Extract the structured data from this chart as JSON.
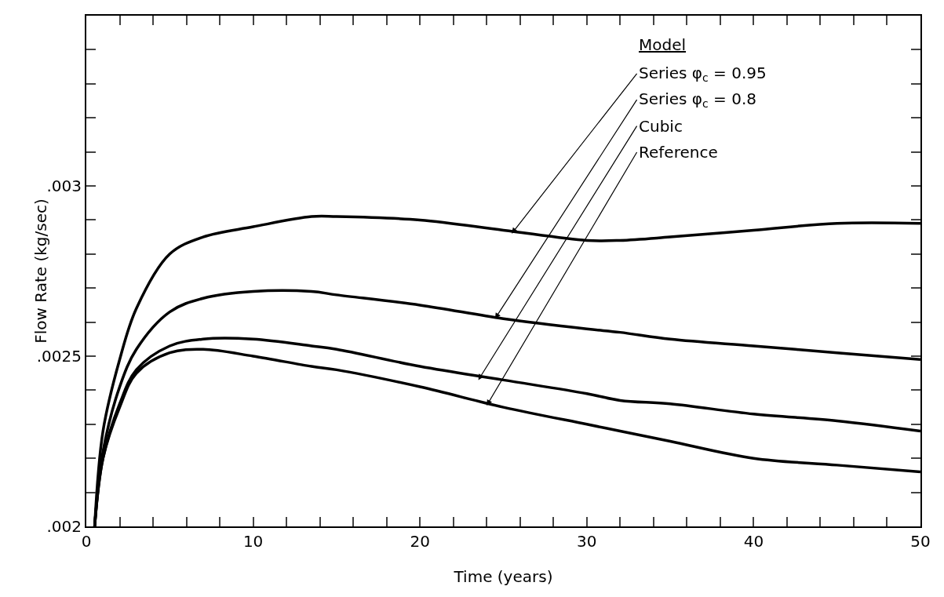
{
  "chart_data": {
    "type": "line",
    "xlabel": "Time (years)",
    "ylabel": "Flow Rate (kg/sec)",
    "legend_title": "Model",
    "xlim": [
      0,
      50
    ],
    "ylim": [
      0.002,
      0.0035
    ],
    "xticks": [
      0,
      {
        "value": 2,
        "label": null
      },
      {
        "value": 4,
        "label": null
      },
      {
        "value": 6,
        "label": null
      },
      {
        "value": 8,
        "label": null
      },
      10,
      {
        "value": 12,
        "label": null
      },
      {
        "value": 14,
        "label": null
      },
      {
        "value": 16,
        "label": null
      },
      {
        "value": 18,
        "label": null
      },
      20,
      {
        "value": 22,
        "label": null
      },
      {
        "value": 24,
        "label": null
      },
      {
        "value": 26,
        "label": null
      },
      {
        "value": 28,
        "label": null
      },
      30,
      {
        "value": 32,
        "label": null
      },
      {
        "value": 34,
        "label": null
      },
      {
        "value": 36,
        "label": null
      },
      {
        "value": 38,
        "label": null
      },
      40,
      {
        "value": 42,
        "label": null
      },
      {
        "value": 44,
        "label": null
      },
      {
        "value": 46,
        "label": null
      },
      {
        "value": 48,
        "label": null
      },
      50
    ],
    "yticks": [
      {
        "value": 0.002,
        "label": ".002"
      },
      {
        "value": 0.0021,
        "label": null
      },
      {
        "value": 0.0022,
        "label": null
      },
      {
        "value": 0.0023,
        "label": null
      },
      {
        "value": 0.0024,
        "label": null
      },
      {
        "value": 0.0025,
        "label": ".0025"
      },
      {
        "value": 0.0026,
        "label": null
      },
      {
        "value": 0.0027,
        "label": null
      },
      {
        "value": 0.0028,
        "label": null
      },
      {
        "value": 0.0029,
        "label": null
      },
      {
        "value": 0.003,
        "label": ".003"
      },
      {
        "value": 0.0031,
        "label": null
      },
      {
        "value": 0.0032,
        "label": null
      },
      {
        "value": 0.0033,
        "label": null
      },
      {
        "value": 0.0034,
        "label": null
      },
      {
        "value": 0.0035,
        "label": null
      }
    ],
    "grid": false,
    "marker": "none",
    "line_style": "solid",
    "x": [
      0.5,
      1,
      2,
      3,
      5,
      7,
      10,
      13.5,
      15,
      20,
      25,
      30,
      32,
      35,
      40,
      45,
      50
    ],
    "series": [
      {
        "color": "#000000",
        "values": [
          0.002,
          0.00228,
          0.00249,
          0.00264,
          0.0028,
          0.00285,
          0.00288,
          0.00291,
          0.00291,
          0.0029,
          0.00287,
          0.00284,
          0.00284,
          0.00285,
          0.00287,
          0.00289,
          0.00289
        ]
      },
      {
        "color": "#000000",
        "values": [
          0.002,
          0.00222,
          0.00241,
          0.00252,
          0.00263,
          0.00267,
          0.00269,
          0.00269,
          0.00268,
          0.00265,
          0.00261,
          0.00258,
          0.00257,
          0.00255,
          0.00253,
          0.00251,
          0.00249
        ]
      },
      {
        "color": "#000000",
        "values": [
          0.002,
          0.0022,
          0.00236,
          0.00246,
          0.00253,
          0.00255,
          0.00255,
          0.00253,
          0.00252,
          0.00247,
          0.00243,
          0.00239,
          0.00237,
          0.00236,
          0.00233,
          0.00231,
          0.00228
        ]
      },
      {
        "color": "#000000",
        "values": [
          0.002,
          0.0022,
          0.00235,
          0.00245,
          0.00251,
          0.00252,
          0.0025,
          0.00247,
          0.00246,
          0.00241,
          0.00235,
          0.0023,
          0.00228,
          0.00225,
          0.0022,
          0.00218,
          0.00216
        ]
      }
    ],
    "annotations": [
      {
        "text": "Series φ$_{c}$ = 0.95",
        "x": 25.5,
        "y": 0.00286
      },
      {
        "text": "Series φ$_{c}$ = 0.8",
        "x": 24.5,
        "y": 0.00261
      },
      {
        "text": "Cubic",
        "x": 23.5,
        "y": 0.00243
      },
      {
        "text": "Reference",
        "x": 24,
        "y": 0.002355
      }
    ]
  }
}
